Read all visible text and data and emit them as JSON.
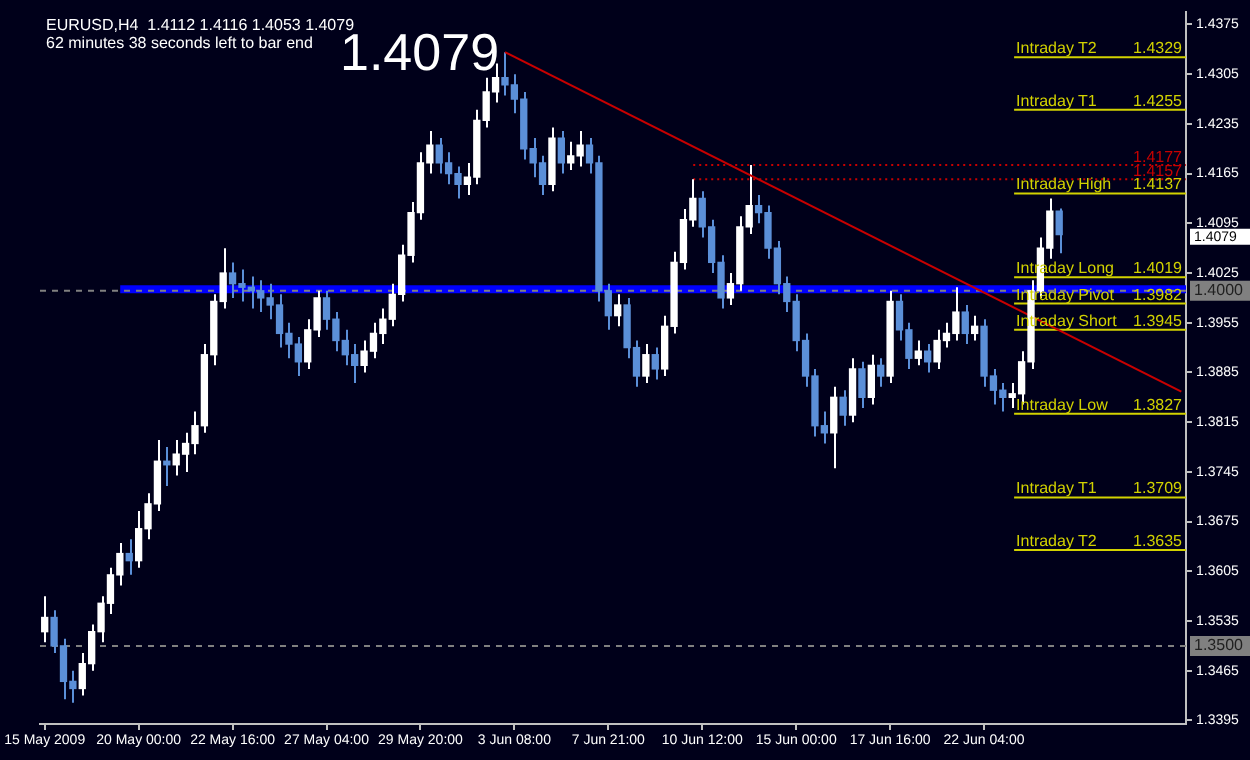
{
  "chart_data": {
    "type": "candlestick",
    "title": "EURUSD,H4  1.4112 1.4116 1.4053 1.4079",
    "subtitle": "62 minutes 38 seconds left to bar end",
    "categories": [
      "15 May 2009",
      null,
      null,
      null,
      null,
      null,
      null,
      null,
      null,
      null,
      "20 May 00:00",
      null,
      null,
      null,
      null,
      null,
      null,
      null,
      null,
      null,
      "22 May 16:00",
      null,
      null,
      null,
      null,
      null,
      null,
      null,
      null,
      null,
      "27 May 04:00",
      null,
      null,
      null,
      null,
      null,
      null,
      null,
      null,
      null,
      "29 May 20:00",
      null,
      null,
      null,
      null,
      null,
      null,
      null,
      null,
      null,
      "3 Jun 08:00",
      null,
      null,
      null,
      null,
      null,
      null,
      null,
      null,
      null,
      "7 Jun 21:00",
      null,
      null,
      null,
      null,
      null,
      null,
      null,
      null,
      null,
      "10 Jun 12:00",
      null,
      null,
      null,
      null,
      null,
      null,
      null,
      null,
      null,
      "15 Jun 00:00",
      null,
      null,
      null,
      null,
      null,
      null,
      null,
      null,
      null,
      "17 Jun 16:00",
      null,
      null,
      null,
      null,
      null,
      null,
      null,
      null,
      null,
      "22 Jun 04:00",
      null,
      null,
      null,
      null,
      null,
      null,
      null,
      null,
      null,
      null,
      null,
      null,
      null,
      null,
      null,
      null,
      null,
      null,
      null,
      null,
      null
    ],
    "ohlc": [
      [
        1.352,
        1.357,
        1.3505,
        1.354
      ],
      [
        1.354,
        1.355,
        1.349,
        1.35
      ],
      [
        1.35,
        1.351,
        1.3425,
        1.345
      ],
      [
        1.345,
        1.3465,
        1.342,
        1.344
      ],
      [
        1.344,
        1.349,
        1.343,
        1.3475
      ],
      [
        1.3475,
        1.353,
        1.3465,
        1.352
      ],
      [
        1.352,
        1.357,
        1.3505,
        1.356
      ],
      [
        1.356,
        1.361,
        1.3545,
        1.36
      ],
      [
        1.36,
        1.3645,
        1.3585,
        1.363
      ],
      [
        1.363,
        1.365,
        1.36,
        1.362
      ],
      [
        1.362,
        1.369,
        1.361,
        1.3665
      ],
      [
        1.3665,
        1.3715,
        1.365,
        1.37
      ],
      [
        1.37,
        1.379,
        1.369,
        1.376
      ],
      [
        1.376,
        1.378,
        1.3725,
        1.3755
      ],
      [
        1.3755,
        1.379,
        1.374,
        1.377
      ],
      [
        1.377,
        1.38,
        1.3745,
        1.3785
      ],
      [
        1.3785,
        1.383,
        1.377,
        1.381
      ],
      [
        1.381,
        1.3925,
        1.38,
        1.391
      ],
      [
        1.391,
        1.3995,
        1.3895,
        1.3985
      ],
      [
        1.3985,
        1.406,
        1.3975,
        1.4025
      ],
      [
        1.4025,
        1.404,
        1.399,
        1.401
      ],
      [
        1.401,
        1.403,
        1.3985,
        1.4005
      ],
      [
        1.4005,
        1.402,
        1.3975,
        1.4
      ],
      [
        1.4,
        1.4015,
        1.397,
        1.399
      ],
      [
        1.399,
        1.401,
        1.396,
        1.398
      ],
      [
        1.398,
        1.3995,
        1.392,
        1.394
      ],
      [
        1.394,
        1.3955,
        1.3905,
        1.3925
      ],
      [
        1.3925,
        1.3935,
        1.388,
        1.39
      ],
      [
        1.39,
        1.396,
        1.389,
        1.3945
      ],
      [
        1.3945,
        1.4,
        1.3935,
        1.399
      ],
      [
        1.399,
        1.4,
        1.3945,
        1.396
      ],
      [
        1.396,
        1.397,
        1.3915,
        1.393
      ],
      [
        1.393,
        1.3945,
        1.3895,
        1.391
      ],
      [
        1.391,
        1.3925,
        1.387,
        1.3895
      ],
      [
        1.3895,
        1.393,
        1.3885,
        1.3915
      ],
      [
        1.3915,
        1.3955,
        1.3905,
        1.394
      ],
      [
        1.394,
        1.3975,
        1.3925,
        1.396
      ],
      [
        1.396,
        1.401,
        1.395,
        1.3995
      ],
      [
        1.3995,
        1.4065,
        1.3985,
        1.405
      ],
      [
        1.405,
        1.4125,
        1.404,
        1.411
      ],
      [
        1.411,
        1.4195,
        1.41,
        1.418
      ],
      [
        1.418,
        1.4225,
        1.4165,
        1.4205
      ],
      [
        1.4205,
        1.4215,
        1.4165,
        1.418
      ],
      [
        1.418,
        1.4195,
        1.415,
        1.4165
      ],
      [
        1.4165,
        1.4175,
        1.413,
        1.415
      ],
      [
        1.415,
        1.418,
        1.4135,
        1.416
      ],
      [
        1.416,
        1.4255,
        1.415,
        1.424
      ],
      [
        1.424,
        1.43,
        1.423,
        1.428
      ],
      [
        1.428,
        1.432,
        1.4265,
        1.43
      ],
      [
        1.43,
        1.4336,
        1.4275,
        1.429
      ],
      [
        1.429,
        1.4305,
        1.425,
        1.427
      ],
      [
        1.427,
        1.428,
        1.4185,
        1.42
      ],
      [
        1.42,
        1.4215,
        1.416,
        1.418
      ],
      [
        1.418,
        1.419,
        1.4135,
        1.415
      ],
      [
        1.415,
        1.423,
        1.414,
        1.4215
      ],
      [
        1.4215,
        1.4225,
        1.4165,
        1.418
      ],
      [
        1.418,
        1.421,
        1.417,
        1.419
      ],
      [
        1.419,
        1.4225,
        1.4175,
        1.4205
      ],
      [
        1.4205,
        1.4215,
        1.4165,
        1.418
      ],
      [
        1.418,
        1.419,
        1.3985,
        1.4
      ],
      [
        1.4,
        1.401,
        1.3945,
        1.3965
      ],
      [
        1.3965,
        1.3995,
        1.395,
        1.398
      ],
      [
        1.398,
        1.399,
        1.3905,
        1.392
      ],
      [
        1.392,
        1.393,
        1.3865,
        1.388
      ],
      [
        1.388,
        1.3925,
        1.387,
        1.391
      ],
      [
        1.391,
        1.392,
        1.3875,
        1.389
      ],
      [
        1.389,
        1.3965,
        1.388,
        1.395
      ],
      [
        1.395,
        1.4055,
        1.394,
        1.404
      ],
      [
        1.404,
        1.4115,
        1.403,
        1.41
      ],
      [
        1.41,
        1.4157,
        1.409,
        1.413
      ],
      [
        1.413,
        1.414,
        1.4075,
        1.409
      ],
      [
        1.409,
        1.41,
        1.4025,
        1.404
      ],
      [
        1.404,
        1.405,
        1.3975,
        1.399
      ],
      [
        1.399,
        1.4025,
        1.398,
        1.401
      ],
      [
        1.401,
        1.4105,
        1.4,
        1.409
      ],
      [
        1.409,
        1.4177,
        1.408,
        1.412
      ],
      [
        1.412,
        1.4135,
        1.4095,
        1.411
      ],
      [
        1.411,
        1.412,
        1.4045,
        1.406
      ],
      [
        1.406,
        1.407,
        1.3995,
        1.401
      ],
      [
        1.401,
        1.402,
        1.397,
        1.3985
      ],
      [
        1.3985,
        1.3995,
        1.3915,
        1.393
      ],
      [
        1.393,
        1.394,
        1.3865,
        1.388
      ],
      [
        1.388,
        1.389,
        1.3795,
        1.381
      ],
      [
        1.381,
        1.383,
        1.3785,
        1.38
      ],
      [
        1.38,
        1.3865,
        1.375,
        1.385
      ],
      [
        1.385,
        1.386,
        1.381,
        1.3825
      ],
      [
        1.3825,
        1.3905,
        1.3815,
        1.389
      ],
      [
        1.389,
        1.39,
        1.3835,
        1.385
      ],
      [
        1.385,
        1.391,
        1.384,
        1.3895
      ],
      [
        1.3895,
        1.3905,
        1.3865,
        1.388
      ],
      [
        1.388,
        1.4,
        1.387,
        1.3985
      ],
      [
        1.3985,
        1.3995,
        1.393,
        1.3945
      ],
      [
        1.3945,
        1.3955,
        1.389,
        1.3905
      ],
      [
        1.3905,
        1.393,
        1.3895,
        1.3915
      ],
      [
        1.3915,
        1.3925,
        1.3885,
        1.39
      ],
      [
        1.39,
        1.3945,
        1.389,
        1.393
      ],
      [
        1.393,
        1.3955,
        1.392,
        1.394
      ],
      [
        1.394,
        1.4005,
        1.393,
        1.397
      ],
      [
        1.397,
        1.398,
        1.3925,
        1.394
      ],
      [
        1.394,
        1.3965,
        1.393,
        1.395
      ],
      [
        1.395,
        1.396,
        1.3865,
        1.388
      ],
      [
        1.388,
        1.389,
        1.384,
        1.386
      ],
      [
        1.386,
        1.387,
        1.383,
        1.385
      ],
      [
        1.385,
        1.387,
        1.3835,
        1.3855
      ],
      [
        1.3855,
        1.3915,
        1.384,
        1.39
      ],
      [
        1.39,
        1.4015,
        1.389,
        1.4
      ],
      [
        1.4,
        1.4075,
        1.399,
        1.406
      ],
      [
        1.406,
        1.413,
        1.4045,
        1.4112
      ],
      [
        1.4112,
        1.4116,
        1.4053,
        1.4079
      ],
      null,
      null,
      null,
      null,
      null,
      null,
      null,
      null,
      null,
      null,
      null,
      null,
      null
    ],
    "colors": [
      "#ffffff",
      "#5b8fd8",
      "#5b8fd8",
      "#5b8fd8",
      "#ffffff",
      "#ffffff",
      "#ffffff",
      "#ffffff",
      "#ffffff",
      "#5b8fd8",
      "#ffffff",
      "#ffffff",
      "#ffffff",
      "#5b8fd8",
      "#ffffff",
      "#ffffff",
      "#ffffff",
      "#ffffff",
      "#ffffff",
      "#ffffff",
      "#5b8fd8",
      "#5b8fd8",
      "#5b8fd8",
      "#5b8fd8",
      "#5b8fd8",
      "#5b8fd8",
      "#5b8fd8",
      "#5b8fd8",
      "#ffffff",
      "#ffffff",
      "#5b8fd8",
      "#5b8fd8",
      "#5b8fd8",
      "#5b8fd8",
      "#ffffff",
      "#ffffff",
      "#ffffff",
      "#ffffff",
      "#ffffff",
      "#ffffff",
      "#ffffff",
      "#ffffff",
      "#5b8fd8",
      "#5b8fd8",
      "#5b8fd8",
      "#ffffff",
      "#ffffff",
      "#ffffff",
      "#ffffff",
      "#5b8fd8",
      "#5b8fd8",
      "#5b8fd8",
      "#5b8fd8",
      "#5b8fd8",
      "#ffffff",
      "#5b8fd8",
      "#ffffff",
      "#ffffff",
      "#5b8fd8",
      "#5b8fd8",
      "#5b8fd8",
      "#ffffff",
      "#5b8fd8",
      "#5b8fd8",
      "#ffffff",
      "#5b8fd8",
      "#ffffff",
      "#ffffff",
      "#ffffff",
      "#ffffff",
      "#5b8fd8",
      "#5b8fd8",
      "#5b8fd8",
      "#ffffff",
      "#ffffff",
      "#ffffff",
      "#5b8fd8",
      "#5b8fd8",
      "#5b8fd8",
      "#5b8fd8",
      "#5b8fd8",
      "#5b8fd8",
      "#5b8fd8",
      "#5b8fd8",
      "#ffffff",
      "#5b8fd8",
      "#ffffff",
      "#5b8fd8",
      "#ffffff",
      "#5b8fd8",
      "#ffffff",
      "#5b8fd8",
      "#5b8fd8",
      "#ffffff",
      "#5b8fd8",
      "#ffffff",
      "#ffffff",
      "#ffffff",
      "#5b8fd8",
      "#ffffff",
      "#5b8fd8",
      "#5b8fd8",
      "#5b8fd8",
      "#ffffff",
      "#ffffff",
      "#ffffff",
      "#ffffff",
      "#ffffff",
      "#5b8fd8",
      null,
      null,
      null,
      null,
      null,
      null,
      null,
      null,
      null,
      null,
      null,
      null,
      null
    ],
    "series": [
      {
        "type": "line",
        "color": "#c80000",
        "values": [
          null,
          null,
          null,
          null,
          null,
          null,
          null,
          null,
          null,
          null,
          null,
          null,
          null,
          null,
          null,
          null,
          null,
          null,
          null,
          null,
          null,
          null,
          null,
          null,
          null,
          null,
          null,
          null,
          null,
          null,
          null,
          null,
          null,
          null,
          null,
          null,
          null,
          null,
          null,
          null,
          null,
          null,
          null,
          null,
          null,
          null,
          null,
          null,
          null,
          1.4336,
          null,
          null,
          null,
          null,
          null,
          null,
          null,
          null,
          null,
          null,
          null,
          null,
          null,
          null,
          null,
          null,
          null,
          null,
          null,
          null,
          null,
          null,
          null,
          null,
          null,
          null,
          null,
          null,
          null,
          null,
          null,
          null,
          null,
          null,
          null,
          null,
          null,
          null,
          null,
          null,
          null,
          null,
          null,
          null,
          null,
          null,
          null,
          null,
          null,
          null,
          null,
          null,
          null,
          null,
          null,
          null,
          null,
          null,
          null,
          null,
          null,
          null,
          null,
          null,
          null,
          null,
          null,
          null,
          null,
          null,
          null,
          1.3858
        ]
      }
    ],
    "ylim": [
      1.339,
      1.4392
    ],
    "yticks": [
      1.4375,
      1.4305,
      1.4235,
      1.4165,
      1.4095,
      1.4025,
      1.3955,
      1.3885,
      1.3815,
      1.3745,
      1.3675,
      1.3605,
      1.3535,
      1.3465,
      1.3395
    ],
    "ref_lines": [
      {
        "axis": "y",
        "value": 1.4329,
        "label": "Intraday T2",
        "color": "#d2d200",
        "line_style": "solid"
      },
      {
        "axis": "y",
        "value": 1.4255,
        "label": "Intraday T1",
        "color": "#d2d200",
        "line_style": "solid"
      },
      {
        "axis": "y",
        "value": 1.4137,
        "label": "Intraday High",
        "color": "#d2d200",
        "line_style": "solid"
      },
      {
        "axis": "y",
        "value": 1.4019,
        "label": "Intraday Long",
        "color": "#d2d200",
        "line_style": "solid"
      },
      {
        "axis": "y",
        "value": 1.3982,
        "label": "Intraday Pivot",
        "color": "#d2d200",
        "line_style": "solid"
      },
      {
        "axis": "y",
        "value": 1.3945,
        "label": "Intraday Short",
        "color": "#d2d200",
        "line_style": "solid"
      },
      {
        "axis": "y",
        "value": 1.3827,
        "label": "Intraday Low",
        "color": "#d2d200",
        "line_style": "solid"
      },
      {
        "axis": "y",
        "value": 1.3709,
        "label": "Intraday T1",
        "color": "#d2d200",
        "line_style": "solid"
      },
      {
        "axis": "y",
        "value": 1.3635,
        "label": "Intraday T2",
        "color": "#d2d200",
        "line_style": "solid"
      },
      {
        "axis": "y",
        "value": 1.4177,
        "label": "1.4177",
        "color": "#c80000",
        "line_style": "dotted"
      },
      {
        "axis": "y",
        "value": 1.4157,
        "label": "1.4157",
        "color": "#c80000",
        "line_style": "dotted"
      },
      {
        "axis": "y",
        "value": 1.4002,
        "color": "#0000ff",
        "line_style": "solid"
      },
      {
        "axis": "y",
        "value": 1.4,
        "label": "1.4000",
        "color": "#808080",
        "line_style": "dashed"
      },
      {
        "axis": "y",
        "value": 1.35,
        "label": "1.3500",
        "color": "#808080",
        "line_style": "dashed"
      }
    ],
    "annotations": [
      "1.4079",
      "1.4079",
      {
        "text": "1.4329",
        "y": 1.4329
      },
      {
        "text": "1.4255",
        "y": 1.4255
      },
      {
        "text": "1.4137",
        "y": 1.4137
      },
      {
        "text": "1.4019",
        "y": 1.4019
      },
      {
        "text": "1.3982",
        "y": 1.3982
      },
      {
        "text": "1.3945",
        "y": 1.3945
      },
      {
        "text": "1.3827",
        "y": 1.3827
      },
      {
        "text": "1.3709",
        "y": 1.3709
      },
      {
        "text": "1.3635",
        "y": 1.3635
      }
    ]
  }
}
